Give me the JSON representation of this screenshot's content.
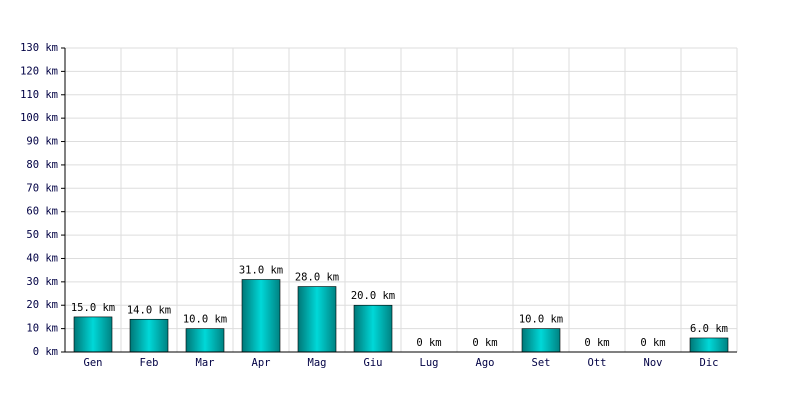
{
  "chart_data": {
    "type": "bar",
    "categories": [
      "Gen",
      "Feb",
      "Mar",
      "Apr",
      "Mag",
      "Giu",
      "Lug",
      "Ago",
      "Set",
      "Ott",
      "Nov",
      "Dic"
    ],
    "values": [
      15,
      14,
      10,
      31,
      28,
      20,
      0,
      0,
      10,
      0,
      0,
      6
    ],
    "value_labels": [
      "15.0 km",
      "14.0 km",
      "10.0 km",
      "31.0 km",
      "28.0 km",
      "20.0 km",
      "0 km",
      "0 km",
      "10.0 km",
      "0 km",
      "0 km",
      "6.0 km"
    ],
    "color": "#00d8d8",
    "ylim": [
      0,
      130
    ],
    "yticks": [
      {
        "value": 0,
        "label": "0 km"
      },
      {
        "value": 10,
        "label": "10 km"
      },
      {
        "value": 20,
        "label": "20 km"
      },
      {
        "value": 30,
        "label": "30 km"
      },
      {
        "value": 40,
        "label": "40 km"
      },
      {
        "value": 50,
        "label": "50 km"
      },
      {
        "value": 60,
        "label": "60 km"
      },
      {
        "value": 70,
        "label": "70 km"
      },
      {
        "value": 80,
        "label": "80 km"
      },
      {
        "value": 90,
        "label": "90 km"
      },
      {
        "value": 100,
        "label": "100 km"
      },
      {
        "value": 110,
        "label": "110 km"
      },
      {
        "value": 120,
        "label": "120 km"
      },
      {
        "value": 130,
        "label": "130 km"
      }
    ],
    "grid": true
  }
}
